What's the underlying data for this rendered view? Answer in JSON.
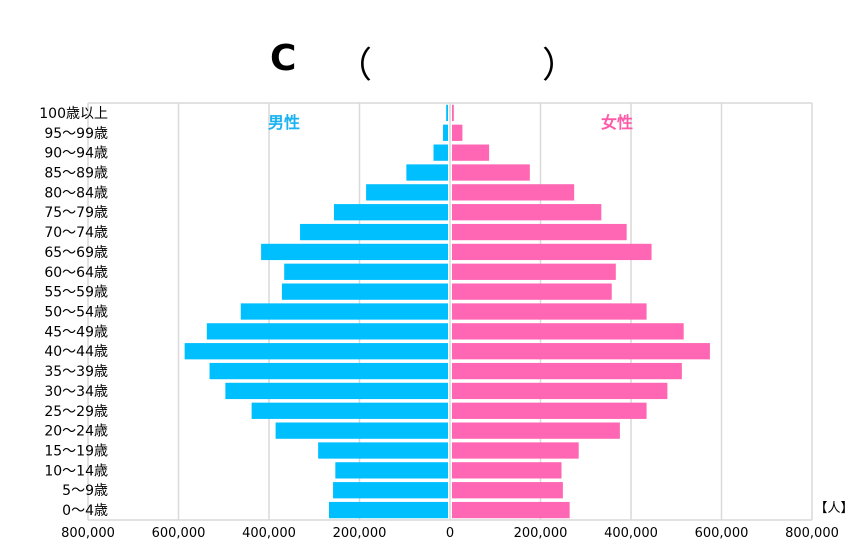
{
  "title": {
    "letter": "C",
    "open_paren": "（",
    "close_paren": "）"
  },
  "unit_label": "【人】",
  "colors": {
    "male": "#00bfff",
    "female": "#ff66b3",
    "male_label": "#1ab2f0",
    "female_label": "#ff5aa8",
    "grid": "#d9d9d9"
  },
  "chart_data": {
    "type": "bar",
    "orientation": "horizontal-population-pyramid",
    "categories": [
      "100歳以上",
      "95～99歳",
      "90～94歳",
      "85～89歳",
      "80～84歳",
      "75～79歳",
      "70～74歳",
      "65～69歳",
      "60～64歳",
      "55～59歳",
      "50～54歳",
      "45～49歳",
      "40～44歳",
      "35～39歳",
      "30～34歳",
      "25～29歳",
      "20～24歳",
      "15～19歳",
      "10～14歳",
      "5～9歳",
      "0～4歳"
    ],
    "series": [
      {
        "name": "男性",
        "values": [
          4000,
          11000,
          32000,
          92000,
          181000,
          252000,
          327000,
          413000,
          362000,
          367000,
          458000,
          533000,
          582000,
          527000,
          492000,
          434000,
          381000,
          287000,
          249000,
          254000,
          263000
        ]
      },
      {
        "name": "女性",
        "values": [
          4000,
          23000,
          82000,
          172000,
          270000,
          330000,
          386000,
          441000,
          362000,
          353000,
          430000,
          512000,
          570000,
          508000,
          476000,
          430000,
          371000,
          280000,
          242000,
          245000,
          260000
        ]
      }
    ],
    "xlim": [
      -800000,
      800000
    ],
    "xticks": [
      -800000,
      -600000,
      -400000,
      -200000,
      0,
      200000,
      400000,
      600000,
      800000
    ],
    "xtick_labels": [
      "800,000",
      "600,000",
      "400,000",
      "200,000",
      "0",
      "200,000",
      "400,000",
      "600,000",
      "800,000"
    ],
    "grid": true
  }
}
